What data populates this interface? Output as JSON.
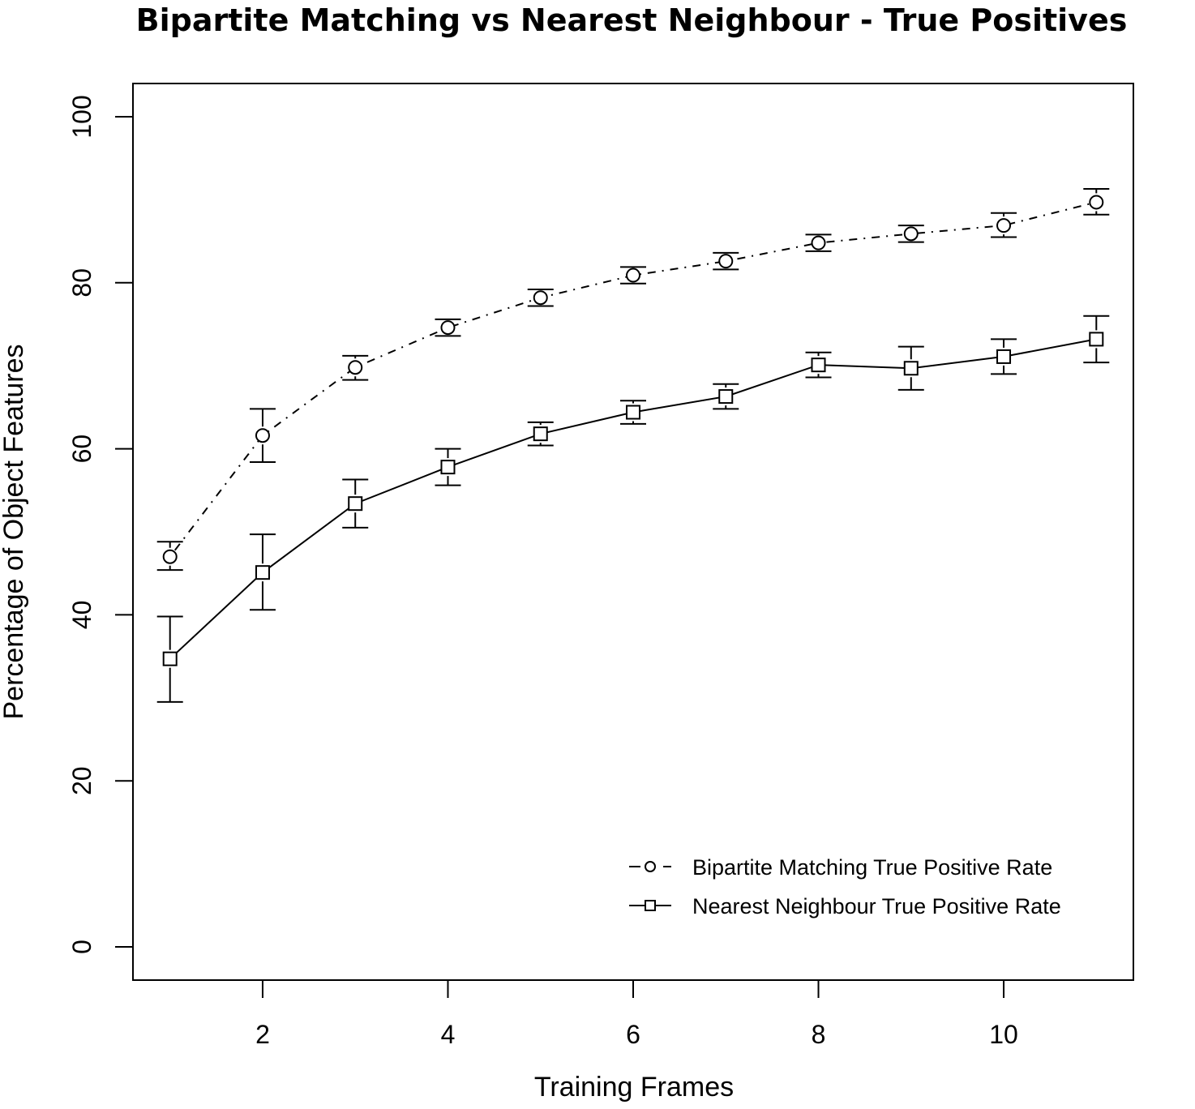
{
  "chart_data": {
    "type": "line",
    "title": "Bipartite Matching vs Nearest Neighbour - True Positives",
    "xlabel": "Training Frames",
    "ylabel": "Percentage of Object Features",
    "xlim": [
      0.6,
      11.4
    ],
    "ylim": [
      -4,
      104
    ],
    "x_ticks": [
      2,
      4,
      6,
      8,
      10
    ],
    "y_ticks": [
      0,
      20,
      40,
      60,
      80,
      100
    ],
    "grid": false,
    "legend_position": "bottom-right",
    "x": [
      1,
      2,
      3,
      4,
      5,
      6,
      7,
      8,
      9,
      10,
      11
    ],
    "series": [
      {
        "name": "Bipartite Matching True Positive Rate",
        "line_style": "dot-dash",
        "marker": "circle",
        "values": [
          47.0,
          61.6,
          69.8,
          74.6,
          78.2,
          80.9,
          82.6,
          84.8,
          85.9,
          86.9,
          89.7
        ],
        "error_lower": [
          45.4,
          58.4,
          68.3,
          73.6,
          77.2,
          79.9,
          81.6,
          83.8,
          84.9,
          85.5,
          88.2
        ],
        "error_upper": [
          48.8,
          64.8,
          71.2,
          75.6,
          79.2,
          81.9,
          83.6,
          85.8,
          86.9,
          88.4,
          91.3
        ]
      },
      {
        "name": "Nearest Neighbour True Positive Rate",
        "line_style": "solid",
        "marker": "square",
        "values": [
          34.7,
          45.1,
          53.4,
          57.8,
          61.8,
          64.4,
          66.3,
          70.1,
          69.7,
          71.1,
          73.2
        ],
        "error_lower": [
          29.5,
          40.6,
          50.5,
          55.6,
          60.4,
          63.0,
          64.8,
          68.6,
          67.1,
          69.0,
          70.4
        ],
        "error_upper": [
          39.8,
          49.7,
          56.3,
          60.0,
          63.2,
          65.8,
          67.8,
          71.6,
          72.3,
          73.2,
          76.0
        ]
      }
    ]
  }
}
